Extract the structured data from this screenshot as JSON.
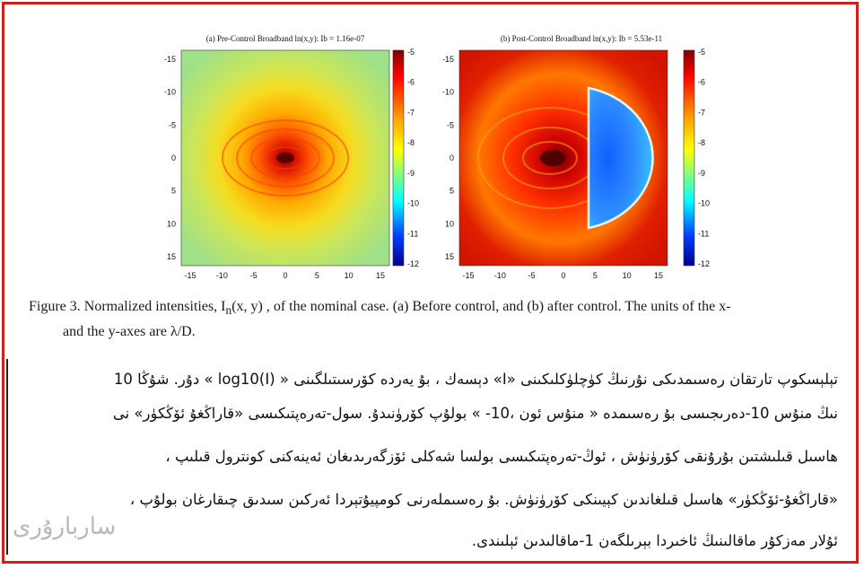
{
  "figure": {
    "panel_a_title": "(a) Pre-Control Broadband ln(x,y): Ib = 1.16e-07",
    "panel_b_title": "(b) Post-Control Broadband ln(x,y): Ib = 5.53e-11",
    "axis_ticks": [
      "-15",
      "-10",
      "-5",
      "0",
      "5",
      "10",
      "15"
    ],
    "colorbar_ticks": [
      "-5",
      "-6",
      "-7",
      "-8",
      "-9",
      "-10",
      "-11",
      "-12"
    ]
  },
  "caption": {
    "line1": "Figure 3. Normalized intensities,  I",
    "sub": "n",
    "line1_rest": "(x, y) , of the nominal case.  (a) Before control, and (b) after control.  The units of the x-",
    "line2": "and the y-axes are λ/D."
  },
  "uyghur": {
    "line1": "تېلېسكوپ تارتقان رەسىمدىكى نۇرنىڭ كۈچلۈكلىكىنى «I» دېسەك ، بۇ يەردە كۆرسىتىلگىنى « log10(I) » دۇر.  شۇڭا 10",
    "line2": "نىڭ منۇس 10-دەرىجىسى بۇ رەسىمدە « منۇس ئون ،10-  » بولۇپ كۆرۈنىدۇ.  سول-تەرەپتىكىسى «قاراڭغۇ ئۆڭكۈر» نى",
    "line3": "ھاسىل قىلىشتىن بۇرۇنقى كۆرۈنۈش ، ئوڭ-تەرەپتىكىسى بولسا شەكلى ئۆزگەرىدىغان ئەينەكنى كونترول قىلىپ ،",
    "line4": "«قاراڭغۇ-ئۆڭكۈر» ھاسىل قىلغاندىن كېيىنكى كۆرۈنۈش.  بۇ رەسىملەرنى كومپيۇتېردا ئەركىن سىدىق چىقارغان بولۇپ ،",
    "line5": "ئۇلار مەزكۇر ماقالىنىڭ ئاخىردا بېرىلگەن 1-ماقالىدىن ئېلىندى."
  },
  "watermark": "ساربارۇرى",
  "colors": {
    "frame": "#d0201c"
  }
}
